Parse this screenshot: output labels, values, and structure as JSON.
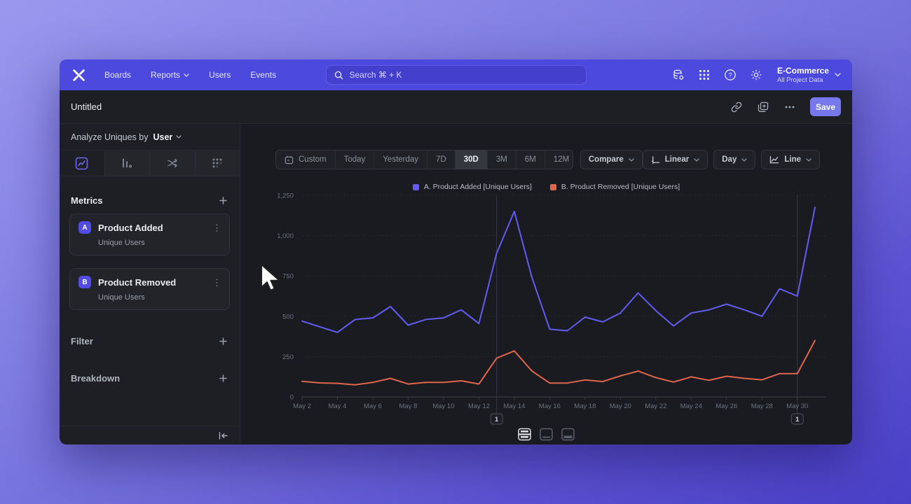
{
  "colors": {
    "brand_nav": "#4C49DE",
    "save_button": "#7678EC",
    "metric_badge": "#534CE2",
    "series_a": "#625CF0",
    "series_b": "#E0654C"
  },
  "nav": {
    "items": [
      {
        "label": "Boards"
      },
      {
        "label": "Reports",
        "has_dropdown": true
      },
      {
        "label": "Users"
      },
      {
        "label": "Events"
      }
    ],
    "search_placeholder": "Search  ⌘ + K",
    "project": {
      "name": "E-Commerce",
      "subtitle": "All Project Data"
    }
  },
  "toolbar": {
    "title": "Untitled",
    "save_label": "Save"
  },
  "sidebar": {
    "analyze_label": "Analyze Uniques by",
    "analyze_value": "User",
    "metrics_label": "Metrics",
    "metrics": [
      {
        "badge": "A",
        "name": "Product Added",
        "subtitle": "Unique Users"
      },
      {
        "badge": "B",
        "name": "Product Removed",
        "subtitle": "Unique Users"
      }
    ],
    "filter_label": "Filter",
    "breakdown_label": "Breakdown"
  },
  "controls": {
    "date_ranges": [
      "Custom",
      "Today",
      "Yesterday",
      "7D",
      "30D",
      "3M",
      "6M",
      "12M"
    ],
    "selected_range": "30D",
    "compare_label": "Compare",
    "scale_label": "Linear",
    "interval_label": "Day",
    "chart_type_label": "Line"
  },
  "icons": {
    "nav_right": [
      "data-settings-icon",
      "apps-grid-icon",
      "help-icon",
      "gear-icon"
    ],
    "toolbar_right": [
      "link-icon",
      "duplicate-icon",
      "more-icon"
    ],
    "sidebar_tabs": [
      "insights-icon",
      "bar-chart-icon",
      "flows-icon",
      "retention-icon"
    ],
    "bottom_toggles": [
      "chart-size-large-icon",
      "chart-size-medium-icon",
      "chart-size-small-icon"
    ]
  },
  "chart_data": {
    "type": "line",
    "x": [
      "May 2",
      "May 3",
      "May 4",
      "May 5",
      "May 6",
      "May 7",
      "May 8",
      "May 9",
      "May 10",
      "May 11",
      "May 12",
      "May 13",
      "May 14",
      "May 15",
      "May 16",
      "May 17",
      "May 18",
      "May 19",
      "May 20",
      "May 21",
      "May 22",
      "May 23",
      "May 24",
      "May 25",
      "May 26",
      "May 27",
      "May 28",
      "May 29",
      "May 30",
      "May 31"
    ],
    "x_tick_labels": [
      "May 2",
      "May 4",
      "May 6",
      "May 8",
      "May 10",
      "May 12",
      "May 14",
      "May 16",
      "May 18",
      "May 20",
      "May 22",
      "May 24",
      "May 26",
      "May 28",
      "May 30"
    ],
    "series": [
      {
        "name": "A. Product Added [Unique Users]",
        "color": "#625CF0",
        "values": [
          470,
          435,
          400,
          480,
          490,
          560,
          445,
          480,
          490,
          540,
          455,
          890,
          1150,
          740,
          420,
          410,
          495,
          465,
          520,
          645,
          535,
          440,
          520,
          540,
          575,
          540,
          500,
          670,
          625,
          1175
        ]
      },
      {
        "name": "B. Product Removed [Unique Users]",
        "color": "#E0654C",
        "values": [
          97,
          87,
          84,
          75,
          90,
          115,
          80,
          90,
          90,
          100,
          80,
          240,
          285,
          160,
          86,
          86,
          105,
          95,
          130,
          160,
          120,
          92,
          124,
          103,
          128,
          115,
          106,
          144,
          144,
          350
        ]
      }
    ],
    "ylim": [
      0,
      1250
    ],
    "yticks": [
      0,
      250,
      500,
      750,
      1000,
      1250
    ],
    "ytick_labels": [
      "0",
      "250",
      "500",
      "750",
      "1,000",
      "1,250"
    ],
    "grid": "horizontal",
    "legend_position": "top",
    "annotations": [
      {
        "x": "May 13",
        "label": "1"
      },
      {
        "x": "May 30",
        "label": "1"
      }
    ]
  }
}
